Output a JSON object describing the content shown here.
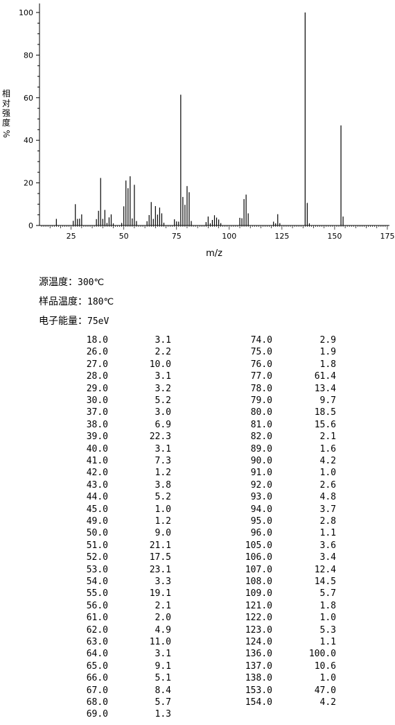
{
  "chart_data": {
    "type": "bar",
    "xlabel": "m/z",
    "ylabel": "相对强度 %",
    "xlim": [
      10,
      176
    ],
    "ylim": [
      0,
      100
    ],
    "xticks": [
      25,
      50,
      75,
      100,
      125,
      150,
      175
    ],
    "yticks": [
      0,
      20,
      40,
      60,
      80,
      100
    ],
    "grid": false,
    "x": [
      18,
      26,
      27,
      28,
      29,
      30,
      37,
      38,
      39,
      40,
      41,
      42,
      43,
      44,
      45,
      49,
      50,
      51,
      52,
      53,
      54,
      55,
      56,
      61,
      62,
      63,
      64,
      65,
      66,
      67,
      68,
      69,
      74,
      75,
      76,
      77,
      78,
      79,
      80,
      81,
      82,
      89,
      90,
      91,
      92,
      93,
      94,
      95,
      96,
      105,
      106,
      107,
      108,
      109,
      121,
      122,
      123,
      124,
      136,
      137,
      138,
      153,
      154
    ],
    "values": [
      3.1,
      2.2,
      10.0,
      3.1,
      3.2,
      5.2,
      3.0,
      6.9,
      22.3,
      3.1,
      7.3,
      1.2,
      3.8,
      5.2,
      1.0,
      1.2,
      9.0,
      21.1,
      17.5,
      23.1,
      3.3,
      19.1,
      2.1,
      2.0,
      4.9,
      11.0,
      3.1,
      9.1,
      5.1,
      8.4,
      5.7,
      1.3,
      2.9,
      1.9,
      1.8,
      61.4,
      13.4,
      9.7,
      18.5,
      15.6,
      2.1,
      1.6,
      4.2,
      1.0,
      2.6,
      4.8,
      3.7,
      2.8,
      1.1,
      3.6,
      3.4,
      12.4,
      14.5,
      5.7,
      1.8,
      1.0,
      5.3,
      1.1,
      100.0,
      10.6,
      1.0,
      47.0,
      4.2
    ]
  },
  "axis": {
    "xlabel": "m/z",
    "ylabel_chars": [
      "相",
      "对",
      "强",
      "度",
      "%"
    ]
  },
  "conditions": {
    "source_temp_label": "源温度：",
    "source_temp_value": "300℃",
    "sample_temp_label": "样品温度：",
    "sample_temp_value": "180℃",
    "electron_energy_label": "电子能量：",
    "electron_energy_value": "75eV"
  },
  "table": {
    "left": [
      [
        "18.0",
        "3.1"
      ],
      [
        "26.0",
        "2.2"
      ],
      [
        "27.0",
        "10.0"
      ],
      [
        "28.0",
        "3.1"
      ],
      [
        "29.0",
        "3.2"
      ],
      [
        "30.0",
        "5.2"
      ],
      [
        "37.0",
        "3.0"
      ],
      [
        "38.0",
        "6.9"
      ],
      [
        "39.0",
        "22.3"
      ],
      [
        "40.0",
        "3.1"
      ],
      [
        "41.0",
        "7.3"
      ],
      [
        "42.0",
        "1.2"
      ],
      [
        "43.0",
        "3.8"
      ],
      [
        "44.0",
        "5.2"
      ],
      [
        "45.0",
        "1.0"
      ],
      [
        "49.0",
        "1.2"
      ],
      [
        "50.0",
        "9.0"
      ],
      [
        "51.0",
        "21.1"
      ],
      [
        "52.0",
        "17.5"
      ],
      [
        "53.0",
        "23.1"
      ],
      [
        "54.0",
        "3.3"
      ],
      [
        "55.0",
        "19.1"
      ],
      [
        "56.0",
        "2.1"
      ],
      [
        "61.0",
        "2.0"
      ],
      [
        "62.0",
        "4.9"
      ],
      [
        "63.0",
        "11.0"
      ],
      [
        "64.0",
        "3.1"
      ],
      [
        "65.0",
        "9.1"
      ],
      [
        "66.0",
        "5.1"
      ],
      [
        "67.0",
        "8.4"
      ],
      [
        "68.0",
        "5.7"
      ],
      [
        "69.0",
        "1.3"
      ]
    ],
    "right": [
      [
        "74.0",
        "2.9"
      ],
      [
        "75.0",
        "1.9"
      ],
      [
        "76.0",
        "1.8"
      ],
      [
        "77.0",
        "61.4"
      ],
      [
        "78.0",
        "13.4"
      ],
      [
        "79.0",
        "9.7"
      ],
      [
        "80.0",
        "18.5"
      ],
      [
        "81.0",
        "15.6"
      ],
      [
        "82.0",
        "2.1"
      ],
      [
        "89.0",
        "1.6"
      ],
      [
        "90.0",
        "4.2"
      ],
      [
        "91.0",
        "1.0"
      ],
      [
        "92.0",
        "2.6"
      ],
      [
        "93.0",
        "4.8"
      ],
      [
        "94.0",
        "3.7"
      ],
      [
        "95.0",
        "2.8"
      ],
      [
        "96.0",
        "1.1"
      ],
      [
        "105.0",
        "3.6"
      ],
      [
        "106.0",
        "3.4"
      ],
      [
        "107.0",
        "12.4"
      ],
      [
        "108.0",
        "14.5"
      ],
      [
        "109.0",
        "5.7"
      ],
      [
        "121.0",
        "1.8"
      ],
      [
        "122.0",
        "1.0"
      ],
      [
        "123.0",
        "5.3"
      ],
      [
        "124.0",
        "1.1"
      ],
      [
        "136.0",
        "100.0"
      ],
      [
        "137.0",
        "10.6"
      ],
      [
        "138.0",
        "1.0"
      ],
      [
        "153.0",
        "47.0"
      ],
      [
        "154.0",
        "4.2"
      ]
    ]
  }
}
